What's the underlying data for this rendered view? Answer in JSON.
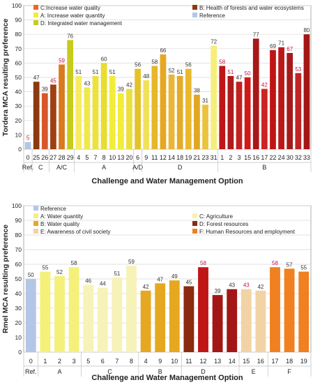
{
  "chart_data": [
    {
      "type": "bar",
      "ylabel": "Tordera MCA resulting preference",
      "xlabel": "Challenge and Water Management Option",
      "ylim": [
        0,
        100
      ],
      "yticks": [
        0,
        10,
        20,
        30,
        40,
        50,
        60,
        70,
        80,
        90,
        100
      ],
      "grid": true,
      "legend_placement": "top",
      "legend": [
        {
          "label": "C:Increase water quality",
          "color": "#f26522"
        },
        {
          "label": "B: Health of forests and water ecosystems",
          "color": "#8b3a0f"
        },
        {
          "label": "A: Increase water quantity",
          "color": "#f2ec3a"
        },
        {
          "label": "Reference",
          "color": "#b4c6e7"
        },
        {
          "label": "D: Integrated water management",
          "color": "#c7cc1a"
        }
      ],
      "categories": [
        "0",
        "25",
        "26",
        "27",
        "28",
        "29",
        "4",
        "5",
        "7",
        "8",
        "10",
        "13",
        "20",
        "6",
        "9",
        "11",
        "12",
        "14",
        "18",
        "19",
        "21",
        "23",
        "31",
        "1",
        "2",
        "3",
        "15",
        "16",
        "17",
        "22",
        "24",
        "30",
        "32",
        "33"
      ],
      "values": [
        5,
        47,
        39,
        45,
        59,
        76,
        51,
        43,
        51,
        60,
        51,
        39,
        42,
        56,
        48,
        58,
        66,
        52,
        51,
        56,
        38,
        31,
        72,
        58,
        51,
        47,
        50,
        77,
        42,
        69,
        71,
        67,
        53,
        80
      ],
      "colors": [
        "#b4c6e7",
        "#8b3a0f",
        "#d8572a",
        "#a03f12",
        "#d97a1c",
        "#c7cc1a",
        "#f5ec62",
        "#f0e84a",
        "#ede23d",
        "#e8dd30",
        "#f2ec3a",
        "#f2ec3a",
        "#eae03a",
        "#e4c228",
        "#efe15a",
        "#e6b72a",
        "#e6a820",
        "#eab638",
        "#e3ab2a",
        "#e8b92c",
        "#e2a620",
        "#eac23c",
        "#f5ee7a",
        "#c01616",
        "#b01a1a",
        "#c32020",
        "#d01818",
        "#a81818",
        "#cc2424",
        "#c01414",
        "#bd1818",
        "#a51a1a",
        "#bf2424",
        "#a51515"
      ],
      "label_colors": [
        "#e0181f",
        "#333333",
        "#333333",
        "#b01c48",
        "#c0144c",
        "#333333",
        "#333333",
        "#333333",
        "#333333",
        "#333333",
        "#333333",
        "#333333",
        "#333333",
        "#333333",
        "#333333",
        "#333333",
        "#333333",
        "#333333",
        "#333333",
        "#333333",
        "#333333",
        "#333333",
        "#333333",
        "#c0144c",
        "#c0144c",
        "#333333",
        "#c0144c",
        "#333333",
        "#c0144c",
        "#333333",
        "#333333",
        "#c0144c",
        "#c0144c",
        "#333333"
      ],
      "groups": [
        {
          "label": "Ref.",
          "start": 0,
          "end": 0
        },
        {
          "label": "C",
          "start": 1,
          "end": 2
        },
        {
          "label": "A/C",
          "start": 3,
          "end": 5
        },
        {
          "label": "A",
          "start": 6,
          "end": 12
        },
        {
          "label": "A/D",
          "start": 13,
          "end": 13
        },
        {
          "label": "D",
          "start": 14,
          "end": 22
        },
        {
          "label": "B",
          "start": 23,
          "end": 33
        }
      ]
    },
    {
      "type": "bar",
      "ylabel": "Rmel MCA resulting preference",
      "xlabel": "Challenge and Water Management Option",
      "ylim": [
        0,
        100
      ],
      "yticks": [
        0,
        10,
        20,
        30,
        40,
        50,
        60,
        70,
        80,
        90,
        100
      ],
      "grid": true,
      "legend_placement": "top",
      "legend": [
        {
          "label": "Reference",
          "color": "#b4c6e7"
        },
        {
          "label": "A: Water quantity",
          "color": "#f5f07a"
        },
        {
          "label": "C: Agriculture",
          "color": "#f7f2b0"
        },
        {
          "label": "B: Water quality",
          "color": "#e6a820"
        },
        {
          "label": "D: Forest resources",
          "color": "#8b2a0f"
        },
        {
          "label": "E: Awareness of civil society",
          "color": "#f1d3a6"
        },
        {
          "label": "F: Human Resources and employment",
          "color": "#f08020"
        }
      ],
      "categories": [
        "0",
        "1",
        "2",
        "3",
        "5",
        "6",
        "7",
        "8",
        "4",
        "9",
        "10",
        "11",
        "12",
        "13",
        "14",
        "15",
        "16",
        "17",
        "18",
        "19"
      ],
      "values": [
        50,
        55,
        52,
        58,
        46,
        44,
        51,
        59,
        42,
        47,
        49,
        45,
        58,
        39,
        43,
        43,
        42,
        58,
        57,
        55
      ],
      "colors": [
        "#b4c6e7",
        "#f5f07a",
        "#f5f07a",
        "#f5f07a",
        "#f7f2b8",
        "#f7f2b8",
        "#f7f2b8",
        "#f7f2b8",
        "#e6a820",
        "#e6a820",
        "#e6a820",
        "#8b2a0f",
        "#c01616",
        "#a31616",
        "#a31616",
        "#f1d3a6",
        "#f1d3a6",
        "#f08020",
        "#f08020",
        "#f08020"
      ],
      "label_colors": [
        "#333333",
        "#333333",
        "#333333",
        "#333333",
        "#333333",
        "#333333",
        "#333333",
        "#333333",
        "#333333",
        "#333333",
        "#333333",
        "#333333",
        "#c0144c",
        "#333333",
        "#333333",
        "#c0144c",
        "#333333",
        "#c0144c",
        "#333333",
        "#333333"
      ],
      "groups": [
        {
          "label": "Ref.",
          "start": 0,
          "end": 0
        },
        {
          "label": "A",
          "start": 1,
          "end": 3
        },
        {
          "label": "C",
          "start": 4,
          "end": 7
        },
        {
          "label": "B",
          "start": 8,
          "end": 10
        },
        {
          "label": "D",
          "start": 11,
          "end": 13
        },
        {
          "label": "E",
          "start": 15,
          "end": 16
        },
        {
          "label": "F",
          "start": 17,
          "end": 19
        }
      ]
    }
  ]
}
